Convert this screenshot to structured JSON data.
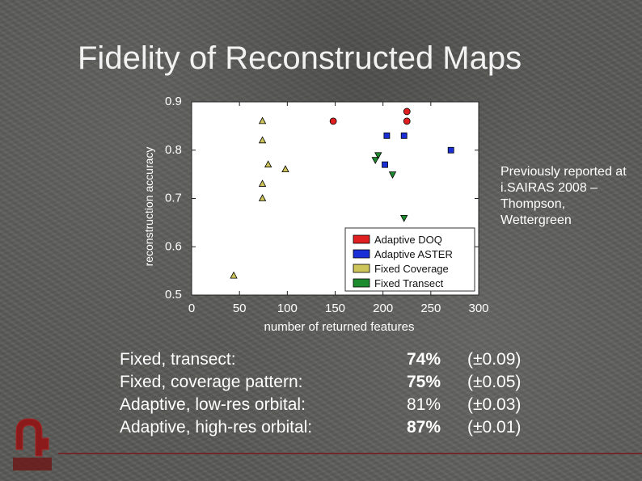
{
  "slide": {
    "title": "Fidelity of Reconstructed Maps",
    "side_note": "Previously reported at i.SAIRAS 2008 – Thompson, Wettergreen",
    "colors": {
      "accent": "#8b1a1a"
    }
  },
  "results": [
    {
      "label": "Fixed, transect:",
      "percent": "74%",
      "bold": true,
      "error": "(±0.09)"
    },
    {
      "label": "Fixed, coverage pattern:",
      "percent": "75%",
      "bold": true,
      "error": "(±0.05)"
    },
    {
      "label": "Adaptive, low-res orbital:",
      "percent": "81%",
      "bold": false,
      "error": "(±0.03)"
    },
    {
      "label": "Adaptive,  high-res orbital:",
      "percent": "87%",
      "bold": true,
      "error": "(±0.01)"
    }
  ],
  "chart_data": {
    "type": "scatter",
    "title": "",
    "xlabel": "number of returned features",
    "ylabel": "reconstruction accuracy",
    "xlim": [
      0,
      300
    ],
    "ylim": [
      0.5,
      0.9
    ],
    "xticks": [
      0,
      50,
      100,
      150,
      200,
      250,
      300
    ],
    "yticks": [
      0.5,
      0.6,
      0.7,
      0.8,
      0.9
    ],
    "ytick_labels": [
      "0.5",
      "0.6",
      "0.7",
      "0.8",
      "0.9"
    ],
    "legend_position": "bottom-right",
    "series": [
      {
        "name": "Adaptive DOQ",
        "color": "#e02020",
        "marker": "circle",
        "points": [
          [
            148,
            0.86
          ],
          [
            225,
            0.88
          ],
          [
            225,
            0.86
          ]
        ]
      },
      {
        "name": "Adaptive ASTER",
        "color": "#1a2fd6",
        "marker": "square",
        "points": [
          [
            204,
            0.83
          ],
          [
            222,
            0.83
          ],
          [
            271,
            0.8
          ],
          [
            202,
            0.77
          ]
        ]
      },
      {
        "name": "Fixed Coverage",
        "color": "#cdc55a",
        "marker": "triangle-up",
        "points": [
          [
            74,
            0.86
          ],
          [
            74,
            0.82
          ],
          [
            80,
            0.77
          ],
          [
            98,
            0.76
          ],
          [
            74,
            0.73
          ],
          [
            74,
            0.7
          ],
          [
            44,
            0.54
          ]
        ]
      },
      {
        "name": "Fixed Transect",
        "color": "#1e8c2e",
        "marker": "triangle-down",
        "points": [
          [
            195,
            0.79
          ],
          [
            192,
            0.78
          ],
          [
            210,
            0.75
          ],
          [
            222,
            0.66
          ]
        ]
      }
    ]
  }
}
